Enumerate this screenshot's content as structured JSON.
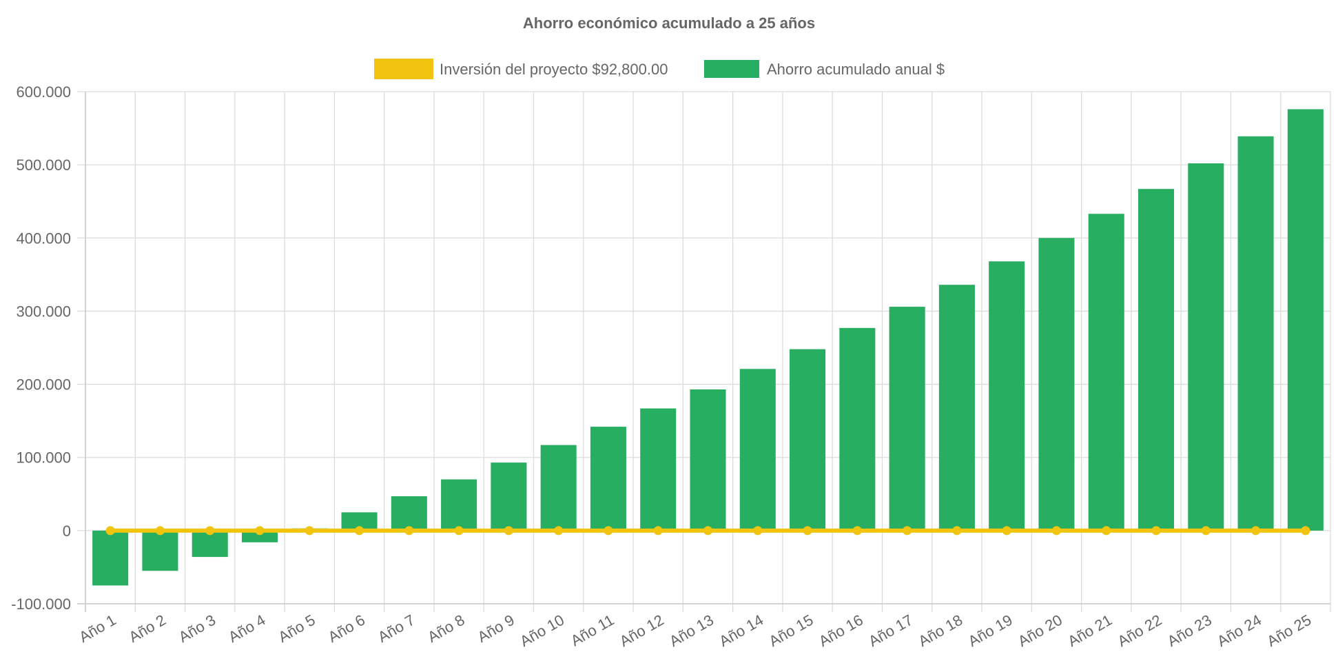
{
  "chart_data": {
    "type": "bar",
    "title": "Ahorro económico acumulado a 25 años",
    "xlabel": "",
    "ylabel": "",
    "categories": [
      "Año 1",
      "Año 2",
      "Año 3",
      "Año 4",
      "Año 5",
      "Año 6",
      "Año 7",
      "Año 8",
      "Año 9",
      "Año 10",
      "Año 11",
      "Año 12",
      "Año 13",
      "Año 14",
      "Año 15",
      "Año 16",
      "Año 17",
      "Año 18",
      "Año 19",
      "Año 20",
      "Año 21",
      "Año 22",
      "Año 23",
      "Año 24",
      "Año 25"
    ],
    "series": [
      {
        "name": "Inversión del proyecto $92,800.00",
        "type": "line",
        "color": "#f1c40f",
        "values": [
          0,
          0,
          0,
          0,
          0,
          0,
          0,
          0,
          0,
          0,
          0,
          0,
          0,
          0,
          0,
          0,
          0,
          0,
          0,
          0,
          0,
          0,
          0,
          0,
          0
        ]
      },
      {
        "name": "Ahorro acumulado anual $",
        "type": "bar",
        "color": "#27ae60",
        "values": [
          -75000,
          -55000,
          -36000,
          -16000,
          3000,
          25000,
          47000,
          70000,
          93000,
          117000,
          142000,
          167000,
          193000,
          221000,
          248000,
          277000,
          306000,
          336000,
          368000,
          400000,
          433000,
          467000,
          502000,
          539000,
          576000
        ]
      }
    ],
    "ylim": [
      -100000,
      600000
    ],
    "yticks": [
      -100000,
      0,
      100000,
      200000,
      300000,
      400000,
      500000,
      600000
    ],
    "ytick_labels": [
      "-100.000",
      "0",
      "100.000",
      "200.000",
      "300.000",
      "400.000",
      "500.000",
      "600.000"
    ],
    "grid": true,
    "legend_position": "top-center"
  }
}
